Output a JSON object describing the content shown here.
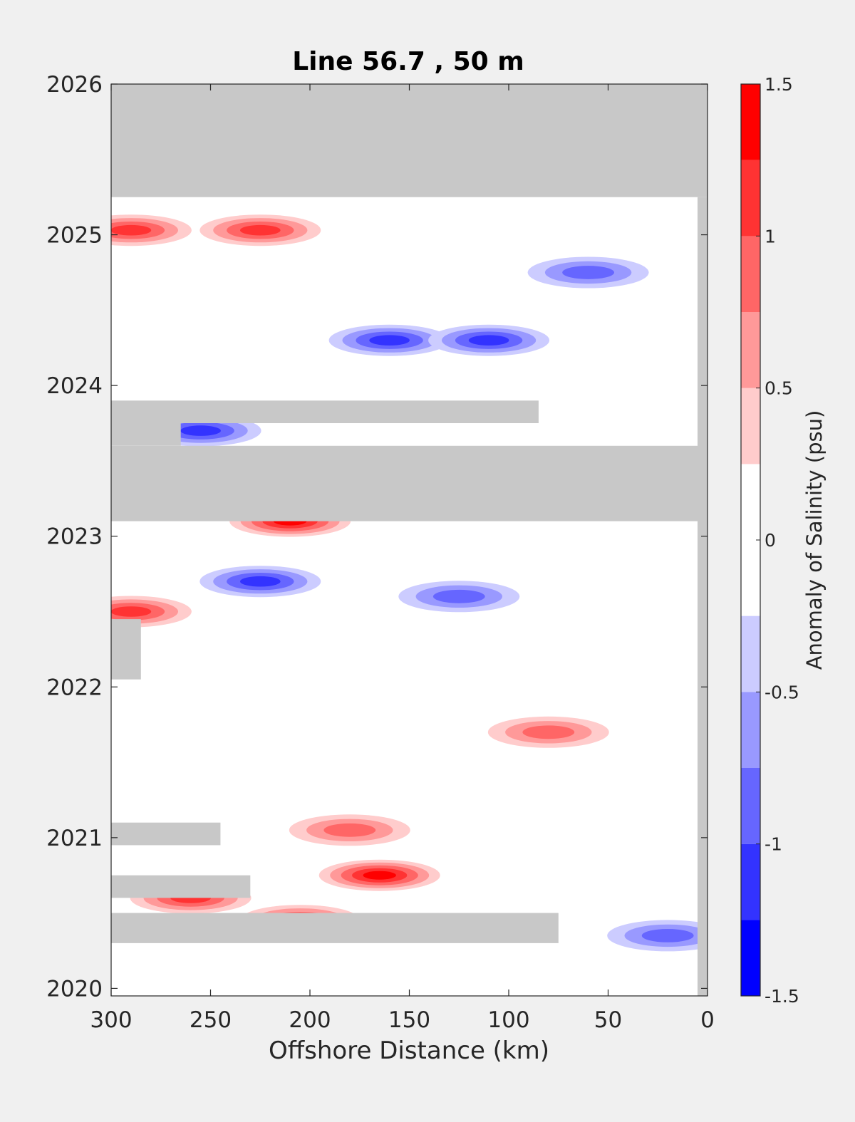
{
  "chart_data": {
    "type": "heatmap",
    "title": "Line 56.7 , 50 m",
    "xlabel": "Offshore Distance (km)",
    "ylabel": "",
    "xlim": [
      300,
      0
    ],
    "ylim": [
      2019.95,
      2026
    ],
    "x_ticks": [
      "300",
      "250",
      "200",
      "150",
      "100",
      "50",
      "0"
    ],
    "x_tick_values": [
      300,
      250,
      200,
      150,
      100,
      50,
      0
    ],
    "y_ticks": [
      "2020",
      "2021",
      "2022",
      "2023",
      "2024",
      "2025",
      "2026"
    ],
    "y_tick_values": [
      2020,
      2021,
      2022,
      2023,
      2024,
      2025,
      2026
    ],
    "colorbar": {
      "label": "Anomaly of Salinity (psu)",
      "limits": [
        -1.5,
        1.5
      ],
      "tick_labels": [
        "1.5",
        "1",
        "0.5",
        "0",
        "-0.5",
        "-1",
        "-1.5"
      ],
      "tick_values": [
        1.5,
        1,
        0.5,
        0,
        -0.5,
        -1,
        -1.5
      ],
      "levels": [
        -1.5,
        -1.25,
        -1.0,
        -0.75,
        -0.5,
        -0.25,
        0.25,
        0.5,
        0.75,
        1.0,
        1.25,
        1.5
      ],
      "colors": [
        "#0000ff",
        "#3333ff",
        "#6666ff",
        "#9999ff",
        "#ccccff",
        "#ffffff",
        "#ffcccc",
        "#ff9999",
        "#ff6666",
        "#ff3333",
        "#ff0000"
      ]
    },
    "nodata_color": "#c8c8c8",
    "nodata_regions": [
      {
        "x": [
          0,
          300
        ],
        "y": [
          2025.25,
          2026
        ]
      },
      {
        "x": [
          5,
          300
        ],
        "y": [
          2023.1,
          2023.6
        ]
      },
      {
        "x": [
          85,
          300
        ],
        "y": [
          2023.75,
          2023.9
        ]
      },
      {
        "x": [
          265,
          300
        ],
        "y": [
          2023.6,
          2023.75
        ]
      },
      {
        "x": [
          285,
          300
        ],
        "y": [
          2022.05,
          2022.45
        ]
      },
      {
        "x": [
          245,
          300
        ],
        "y": [
          2020.95,
          2021.1
        ]
      },
      {
        "x": [
          230,
          300
        ],
        "y": [
          2020.6,
          2020.75
        ]
      },
      {
        "x": [
          75,
          300
        ],
        "y": [
          2020.3,
          2020.5
        ]
      },
      {
        "x": [
          0,
          5
        ],
        "y": [
          2019.95,
          2025.25
        ]
      }
    ],
    "anomaly_features": [
      {
        "x": 290,
        "y": 2025.03,
        "value": 1.0
      },
      {
        "x": 225,
        "y": 2025.03,
        "value": 0.9
      },
      {
        "x": 160,
        "y": 2024.3,
        "value": -0.9
      },
      {
        "x": 110,
        "y": 2024.3,
        "value": -1.0
      },
      {
        "x": 60,
        "y": 2024.75,
        "value": -0.7
      },
      {
        "x": 255,
        "y": 2023.7,
        "value": -1.0
      },
      {
        "x": 210,
        "y": 2023.1,
        "value": 1.2
      },
      {
        "x": 225,
        "y": 2022.7,
        "value": -0.9
      },
      {
        "x": 125,
        "y": 2022.6,
        "value": -0.8
      },
      {
        "x": 290,
        "y": 2022.5,
        "value": 1.0
      },
      {
        "x": 80,
        "y": 2021.7,
        "value": 0.7
      },
      {
        "x": 180,
        "y": 2021.05,
        "value": 0.8
      },
      {
        "x": 165,
        "y": 2020.75,
        "value": 1.2
      },
      {
        "x": 205,
        "y": 2020.45,
        "value": 1.0
      },
      {
        "x": 260,
        "y": 2020.6,
        "value": 1.0
      },
      {
        "x": 20,
        "y": 2020.35,
        "value": -0.8
      }
    ]
  }
}
